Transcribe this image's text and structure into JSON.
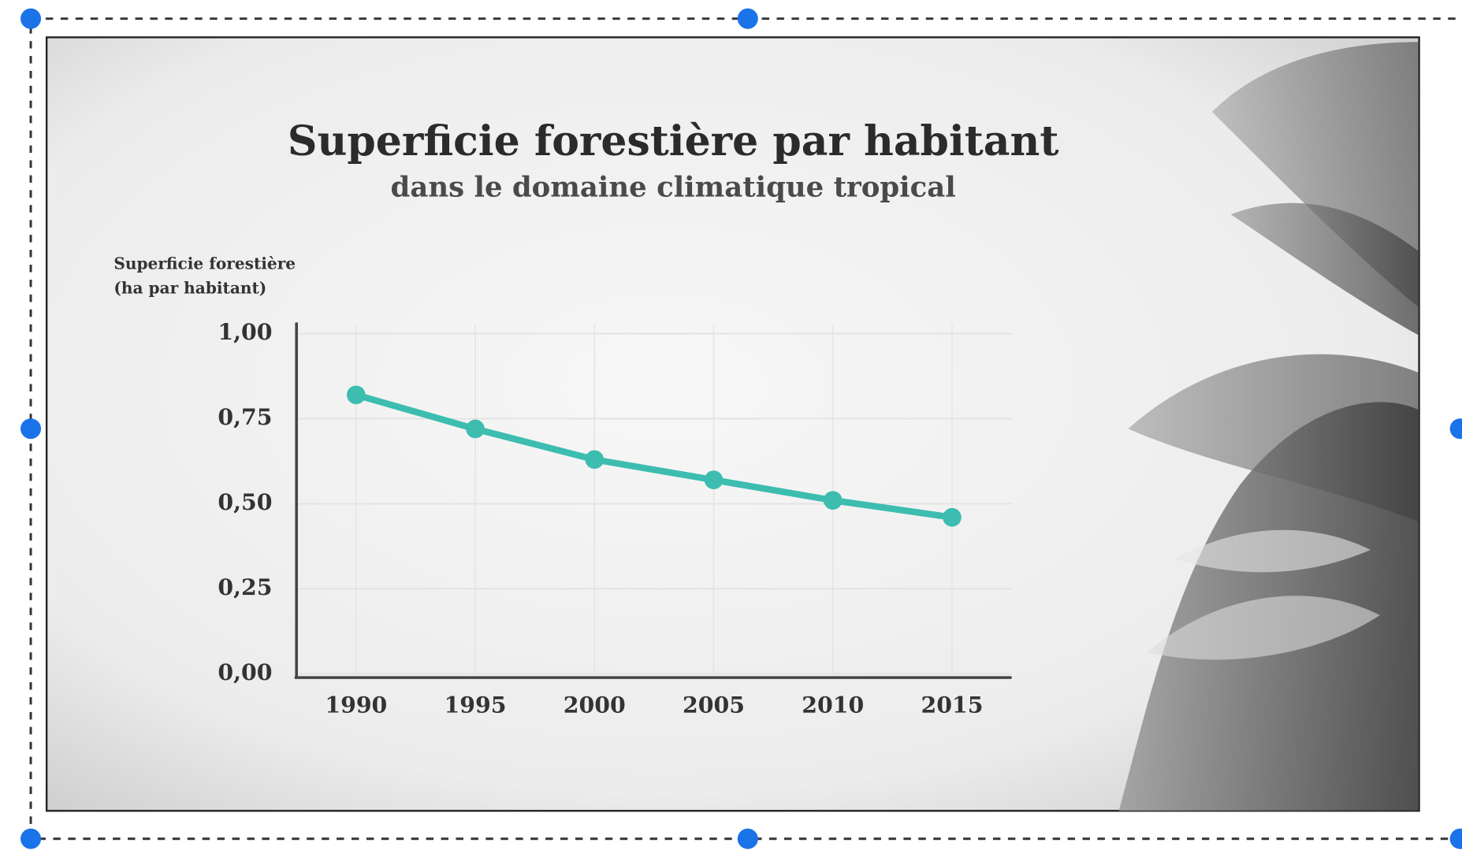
{
  "chart_data": {
    "type": "line",
    "title": "Superficie forestière par habitant",
    "subtitle": "dans le domaine climatique tropical",
    "ylabel": [
      "Superficie forestière",
      "(ha par habitant)"
    ],
    "categories": [
      "1990",
      "1995",
      "2000",
      "2005",
      "2010",
      "2015"
    ],
    "values": [
      0.82,
      0.72,
      0.63,
      0.57,
      0.51,
      0.46
    ],
    "color": "#3cbdb0",
    "ylim": [
      0,
      1
    ],
    "yticks": [
      {
        "value": 0,
        "label": "0,00"
      },
      {
        "value": 0.25,
        "label": "0,25"
      },
      {
        "value": 0.5,
        "label": "0,50"
      },
      {
        "value": 0.75,
        "label": "0,75"
      },
      {
        "value": 1,
        "label": "1,00"
      }
    ],
    "grid": true
  }
}
